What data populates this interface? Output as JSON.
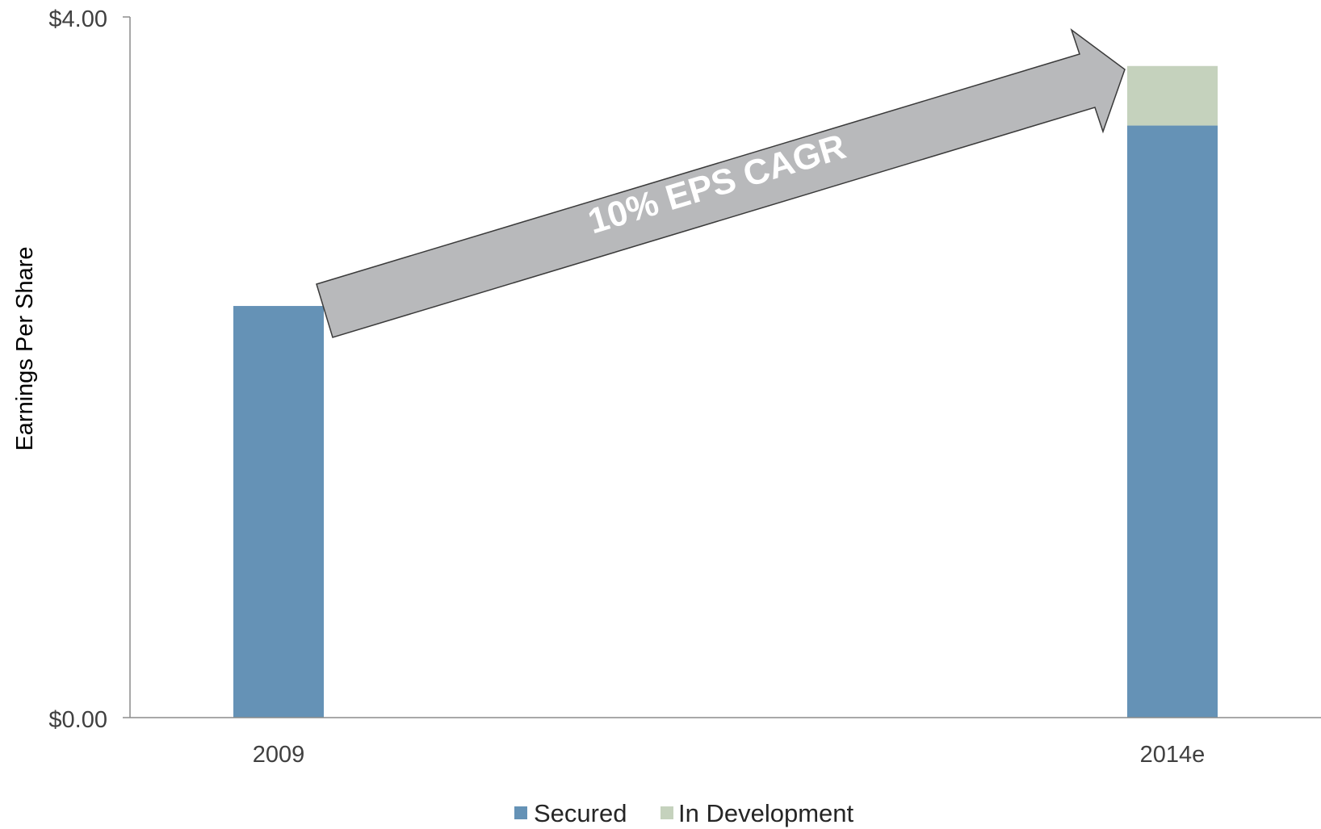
{
  "chart_data": {
    "type": "bar",
    "stacked": true,
    "categories": [
      "2009",
      "2014e"
    ],
    "series": [
      {
        "name": "Secured",
        "values": [
          2.35,
          3.38
        ],
        "color": "#6592b6"
      },
      {
        "name": "In Development",
        "values": [
          0,
          0.34
        ],
        "color": "#c5d2bd"
      }
    ],
    "ylabel": "Earnings Per Share",
    "ylim": [
      0,
      4
    ],
    "yticks": [
      0,
      4
    ],
    "ytick_labels": [
      "$0.00",
      "$4.00"
    ],
    "grid": false,
    "legend": "bottom-center",
    "annotations": [
      {
        "text": "10% EPS CAGR",
        "shape": "arrow",
        "from_category": "2009",
        "to_category": "2014e",
        "color": "#b8b9bb"
      }
    ]
  }
}
